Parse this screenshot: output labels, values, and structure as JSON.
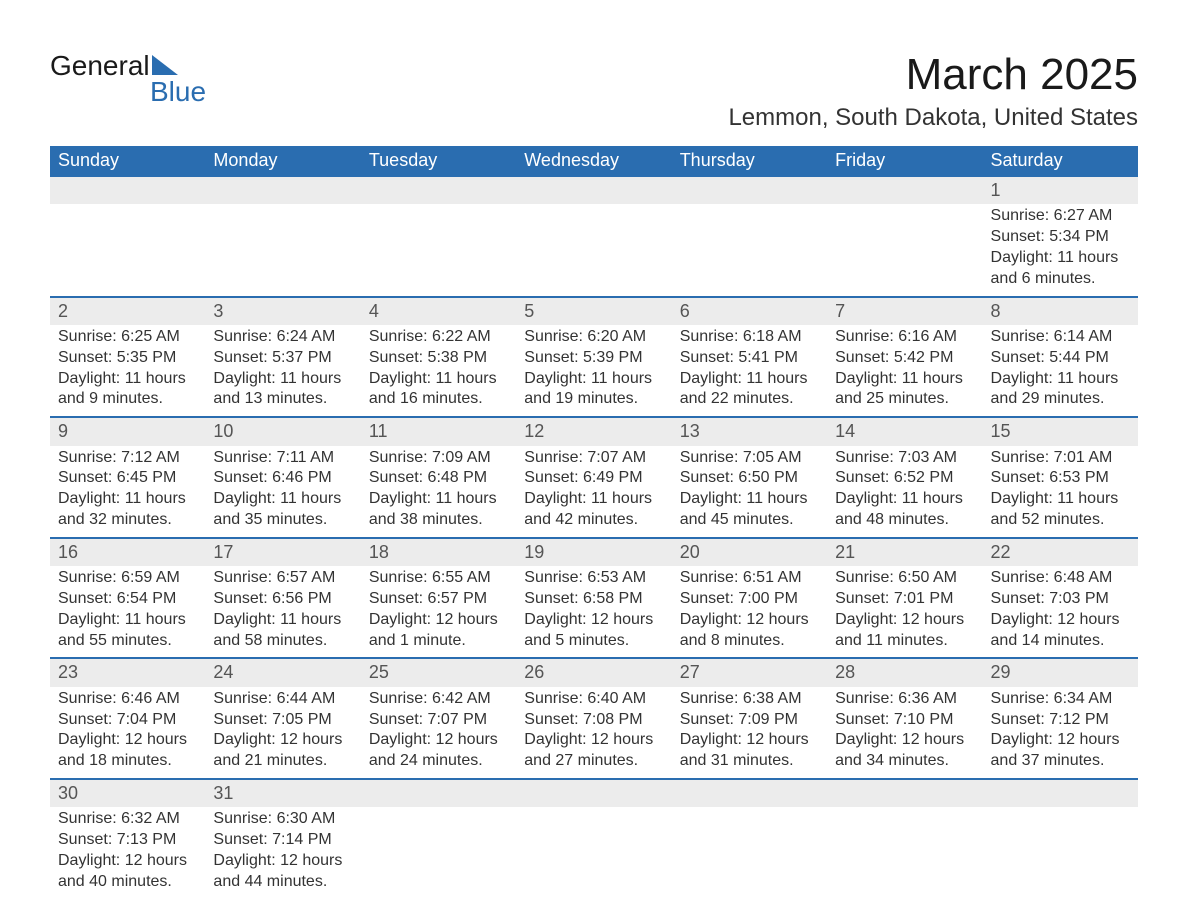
{
  "logo": {
    "line1": "General",
    "line2": "Blue",
    "brand_color": "#2a6db0"
  },
  "title": "March 2025",
  "location": "Lemmon, South Dakota, United States",
  "colors": {
    "header_bg": "#2a6db0",
    "header_text": "#ffffff",
    "daynum_bg": "#ececec",
    "row_divider": "#2a6db0",
    "text": "#333333",
    "title_color": "#1a1a1a"
  },
  "weekdays": [
    "Sunday",
    "Monday",
    "Tuesday",
    "Wednesday",
    "Thursday",
    "Friday",
    "Saturday"
  ],
  "weeks": [
    {
      "days": [
        null,
        null,
        null,
        null,
        null,
        null,
        {
          "n": "1",
          "sunrise": "6:27 AM",
          "sunset": "5:34 PM",
          "daylight": "11 hours and 6 minutes."
        }
      ]
    },
    {
      "days": [
        {
          "n": "2",
          "sunrise": "6:25 AM",
          "sunset": "5:35 PM",
          "daylight": "11 hours and 9 minutes."
        },
        {
          "n": "3",
          "sunrise": "6:24 AM",
          "sunset": "5:37 PM",
          "daylight": "11 hours and 13 minutes."
        },
        {
          "n": "4",
          "sunrise": "6:22 AM",
          "sunset": "5:38 PM",
          "daylight": "11 hours and 16 minutes."
        },
        {
          "n": "5",
          "sunrise": "6:20 AM",
          "sunset": "5:39 PM",
          "daylight": "11 hours and 19 minutes."
        },
        {
          "n": "6",
          "sunrise": "6:18 AM",
          "sunset": "5:41 PM",
          "daylight": "11 hours and 22 minutes."
        },
        {
          "n": "7",
          "sunrise": "6:16 AM",
          "sunset": "5:42 PM",
          "daylight": "11 hours and 25 minutes."
        },
        {
          "n": "8",
          "sunrise": "6:14 AM",
          "sunset": "5:44 PM",
          "daylight": "11 hours and 29 minutes."
        }
      ]
    },
    {
      "days": [
        {
          "n": "9",
          "sunrise": "7:12 AM",
          "sunset": "6:45 PM",
          "daylight": "11 hours and 32 minutes."
        },
        {
          "n": "10",
          "sunrise": "7:11 AM",
          "sunset": "6:46 PM",
          "daylight": "11 hours and 35 minutes."
        },
        {
          "n": "11",
          "sunrise": "7:09 AM",
          "sunset": "6:48 PM",
          "daylight": "11 hours and 38 minutes."
        },
        {
          "n": "12",
          "sunrise": "7:07 AM",
          "sunset": "6:49 PM",
          "daylight": "11 hours and 42 minutes."
        },
        {
          "n": "13",
          "sunrise": "7:05 AM",
          "sunset": "6:50 PM",
          "daylight": "11 hours and 45 minutes."
        },
        {
          "n": "14",
          "sunrise": "7:03 AM",
          "sunset": "6:52 PM",
          "daylight": "11 hours and 48 minutes."
        },
        {
          "n": "15",
          "sunrise": "7:01 AM",
          "sunset": "6:53 PM",
          "daylight": "11 hours and 52 minutes."
        }
      ]
    },
    {
      "days": [
        {
          "n": "16",
          "sunrise": "6:59 AM",
          "sunset": "6:54 PM",
          "daylight": "11 hours and 55 minutes."
        },
        {
          "n": "17",
          "sunrise": "6:57 AM",
          "sunset": "6:56 PM",
          "daylight": "11 hours and 58 minutes."
        },
        {
          "n": "18",
          "sunrise": "6:55 AM",
          "sunset": "6:57 PM",
          "daylight": "12 hours and 1 minute."
        },
        {
          "n": "19",
          "sunrise": "6:53 AM",
          "sunset": "6:58 PM",
          "daylight": "12 hours and 5 minutes."
        },
        {
          "n": "20",
          "sunrise": "6:51 AM",
          "sunset": "7:00 PM",
          "daylight": "12 hours and 8 minutes."
        },
        {
          "n": "21",
          "sunrise": "6:50 AM",
          "sunset": "7:01 PM",
          "daylight": "12 hours and 11 minutes."
        },
        {
          "n": "22",
          "sunrise": "6:48 AM",
          "sunset": "7:03 PM",
          "daylight": "12 hours and 14 minutes."
        }
      ]
    },
    {
      "days": [
        {
          "n": "23",
          "sunrise": "6:46 AM",
          "sunset": "7:04 PM",
          "daylight": "12 hours and 18 minutes."
        },
        {
          "n": "24",
          "sunrise": "6:44 AM",
          "sunset": "7:05 PM",
          "daylight": "12 hours and 21 minutes."
        },
        {
          "n": "25",
          "sunrise": "6:42 AM",
          "sunset": "7:07 PM",
          "daylight": "12 hours and 24 minutes."
        },
        {
          "n": "26",
          "sunrise": "6:40 AM",
          "sunset": "7:08 PM",
          "daylight": "12 hours and 27 minutes."
        },
        {
          "n": "27",
          "sunrise": "6:38 AM",
          "sunset": "7:09 PM",
          "daylight": "12 hours and 31 minutes."
        },
        {
          "n": "28",
          "sunrise": "6:36 AM",
          "sunset": "7:10 PM",
          "daylight": "12 hours and 34 minutes."
        },
        {
          "n": "29",
          "sunrise": "6:34 AM",
          "sunset": "7:12 PM",
          "daylight": "12 hours and 37 minutes."
        }
      ]
    },
    {
      "days": [
        {
          "n": "30",
          "sunrise": "6:32 AM",
          "sunset": "7:13 PM",
          "daylight": "12 hours and 40 minutes."
        },
        {
          "n": "31",
          "sunrise": "6:30 AM",
          "sunset": "7:14 PM",
          "daylight": "12 hours and 44 minutes."
        },
        null,
        null,
        null,
        null,
        null
      ]
    }
  ],
  "labels": {
    "sunrise": "Sunrise:",
    "sunset": "Sunset:",
    "daylight": "Daylight:"
  }
}
